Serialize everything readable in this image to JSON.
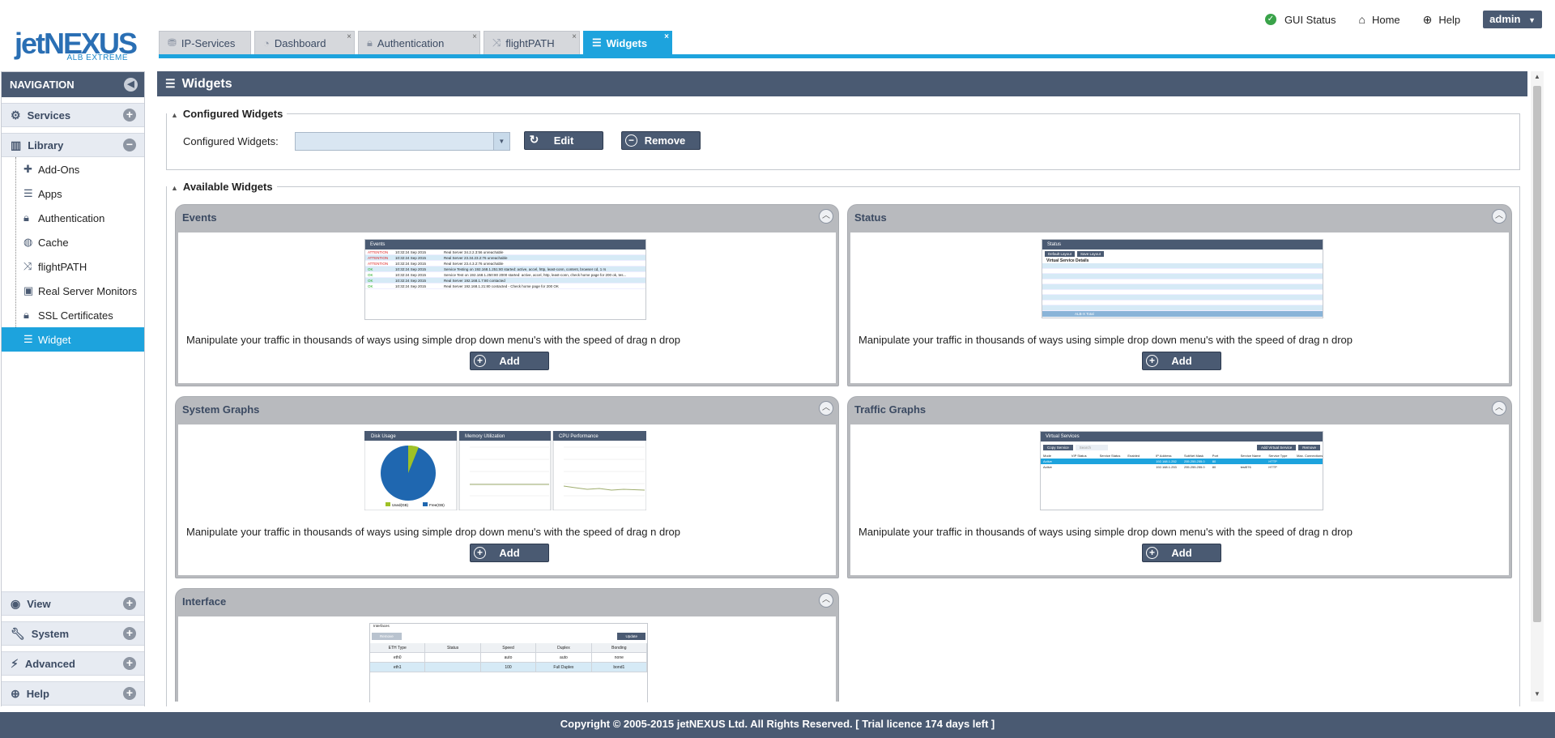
{
  "logo": {
    "brand": "jetNEXUS",
    "sub": "ALB EXTREME"
  },
  "topbar": {
    "gui_status": "GUI Status",
    "home": "Home",
    "help": "Help",
    "user": "admin"
  },
  "tabs": [
    {
      "label": "IP-Services",
      "icon": "network-icon"
    },
    {
      "label": "Dashboard",
      "icon": "gauge-icon"
    },
    {
      "label": "Authentication",
      "icon": "lock-icon"
    },
    {
      "label": "flightPATH",
      "icon": "shuffle-icon"
    },
    {
      "label": "Widgets",
      "icon": "widget-icon",
      "active": true
    }
  ],
  "nav": {
    "title": "NAVIGATION",
    "sections": {
      "services": "Services",
      "library": "Library",
      "view": "View",
      "system": "System",
      "advanced": "Advanced",
      "help": "Help"
    },
    "library_items": [
      {
        "label": "Add-Ons",
        "icon": "puzzle-icon"
      },
      {
        "label": "Apps",
        "icon": "app-icon"
      },
      {
        "label": "Authentication",
        "icon": "lock-icon"
      },
      {
        "label": "Cache",
        "icon": "globe-icon"
      },
      {
        "label": "flightPATH",
        "icon": "shuffle-icon"
      },
      {
        "label": "Real Server Monitors",
        "icon": "medkit-icon"
      },
      {
        "label": "SSL Certificates",
        "icon": "lock-icon"
      },
      {
        "label": "Widget",
        "icon": "widget-icon",
        "selected": true
      }
    ]
  },
  "page": {
    "title": "Widgets",
    "configured": {
      "legend": "Configured Widgets",
      "label": "Configured Widgets:",
      "select_value": "",
      "edit": "Edit",
      "remove": "Remove"
    },
    "available": {
      "legend": "Available Widgets",
      "add_label": "Add",
      "widgets": [
        {
          "title": "Events",
          "desc": "Manipulate your traffic in thousands of ways using simple drop down menu's with the speed of drag n drop"
        },
        {
          "title": "Status",
          "desc": "Manipulate your traffic in thousands of ways using simple drop down menu's with the speed of drag n drop"
        },
        {
          "title": "System Graphs",
          "desc": "Manipulate your traffic in thousands of ways using simple drop down menu's with the speed of drag n drop"
        },
        {
          "title": "Traffic Graphs",
          "desc": "Manipulate your traffic in thousands of ways using simple drop down menu's with the speed of drag n drop"
        },
        {
          "title": "Interface",
          "desc": ""
        }
      ]
    }
  },
  "thumbs": {
    "events": {
      "title": "Events",
      "rows": [
        [
          "ATTENTION",
          "10:32:24 Sep 2015",
          "Real Server 34.2.2.3:56 unreachable"
        ],
        [
          "ATTENTION",
          "10:32:24 Sep 2015",
          "Real Server 23.34.23.2:76 unreachable"
        ],
        [
          "ATTENTION",
          "10:32:24 Sep 2015",
          "Real Server 23.4.3.2:76 unreachable"
        ],
        [
          "OK",
          "10:32:24 Sep 2015",
          "Service Testing on 192.168.1.251:80 started: active, accel, http, least-conn, content, browser cd, 1 rs"
        ],
        [
          "OK",
          "10:32:24 Sep 2015",
          "Service Test on 192.168.1.250:80 2000 started: active, accel, http, least-conn, check home page for 200 ok, tes..."
        ],
        [
          "OK",
          "10:32:24 Sep 2015",
          "Real Server 192.168.1.7:80 contacted"
        ],
        [
          "OK",
          "10:32:24 Sep 2015",
          "Real Server 192.168.1.21:80 contacted - Check home page for 200 OK"
        ]
      ]
    },
    "status": {
      "title": "Status",
      "btn1": "Default Layout",
      "btn2": "Save Layout",
      "section": "Virtual Service Details",
      "total": "ALB-X Total"
    },
    "sysgraphs": {
      "disk": "Disk Usage",
      "mem": "Memory Utilization",
      "cpu": "CPU Performance",
      "used": "Used(GB)",
      "free": "Free(GB)"
    },
    "traffic": {
      "title": "Virtual Services",
      "copy": "Copy Service",
      "search": "Search",
      "add": "Add Virtual Service",
      "remove": "Remove",
      "headers": [
        "Mode",
        "VIP Status",
        "Service Status",
        "Enabled",
        "IP Address",
        "SubNet Mask",
        "Port",
        "Service Name",
        "Service Type",
        "Max. Connections"
      ],
      "rows": [
        [
          "Active",
          "",
          "",
          "",
          "192.168.1.252",
          "255.255.255.0",
          "80",
          "",
          "HTTP",
          ""
        ],
        [
          "Active",
          "",
          "",
          "",
          "192.168.1.253",
          "255.255.255.0",
          "80",
          "test576",
          "HTTP",
          ""
        ]
      ]
    },
    "interface": {
      "title": "Interfaces",
      "remove": "Remove",
      "update": "Update",
      "headers": [
        "ETH Type",
        "Status",
        "Speed",
        "Duplex",
        "Bonding"
      ],
      "rows": [
        [
          "eth0",
          "",
          "auto",
          "auto",
          "none"
        ],
        [
          "eth1",
          "",
          "100",
          "Full Duplex",
          "bond1"
        ]
      ]
    }
  },
  "footer": "Copyright © 2005-2015 jetNEXUS Ltd. All Rights Reserved.  [ Trial licence 174 days left ]",
  "colors": {
    "accent": "#1da3dd",
    "header": "#4a5a72"
  }
}
